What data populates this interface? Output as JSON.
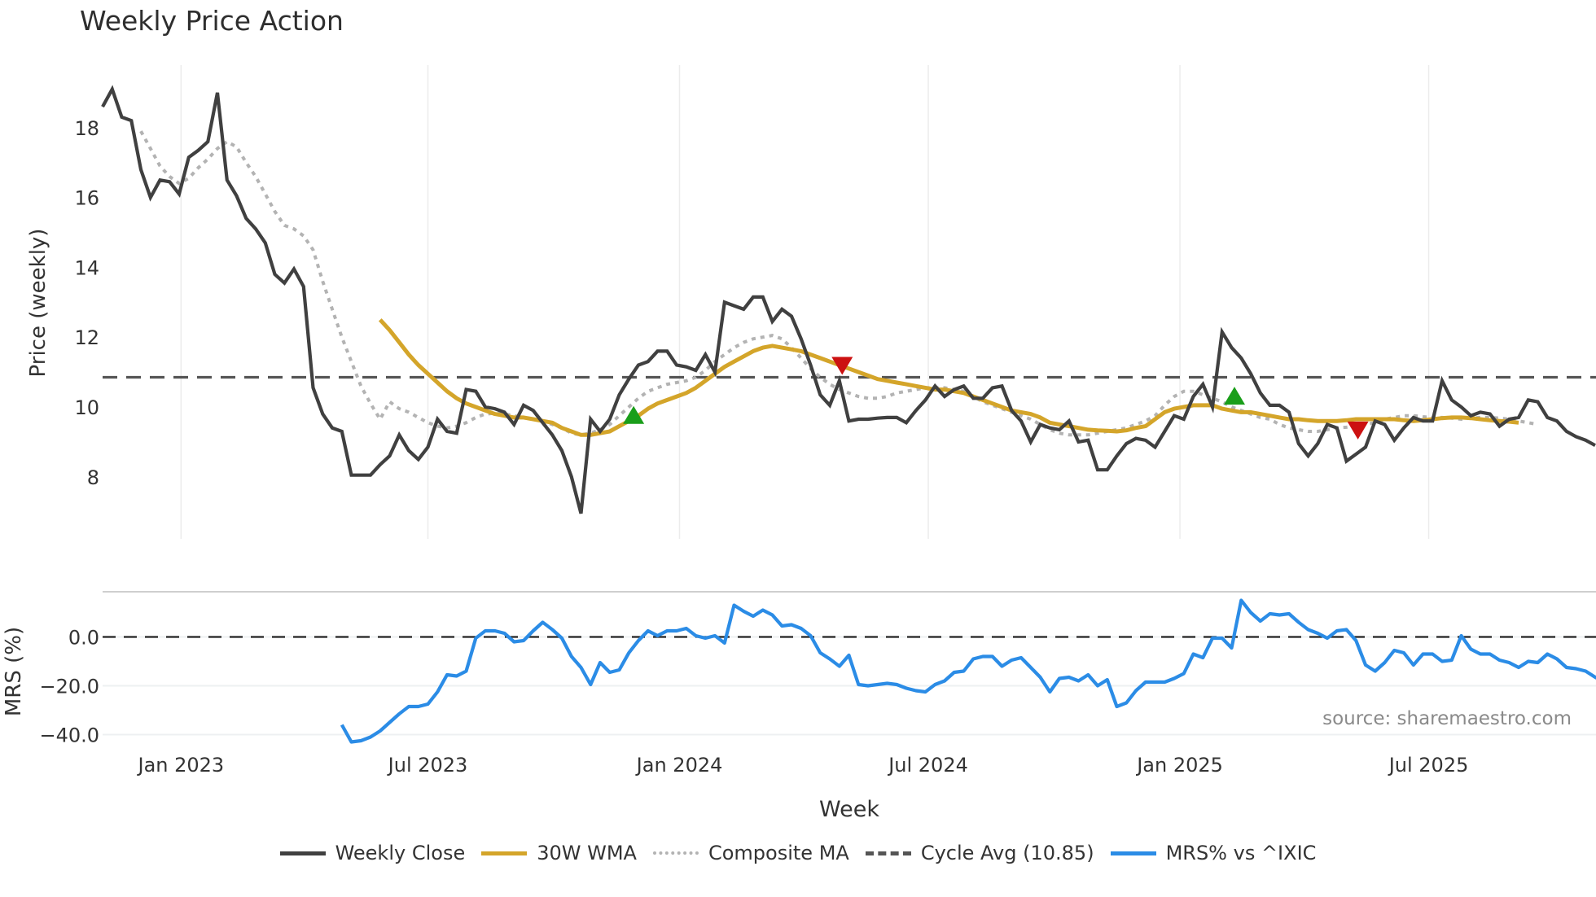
{
  "title": "Weekly Price Action",
  "source_note": "source: sharemaestro.com",
  "colors": {
    "close": "#404040",
    "wma": "#d4a52a",
    "composite": "#b3b3b3",
    "cycle_avg": "#555555",
    "mrs": "#2b8ce6",
    "buy_marker": "#1a9e1a",
    "sell_marker": "#cc1111",
    "grid": "#e8e8e8"
  },
  "legend": [
    {
      "label": "Weekly Close",
      "style": "solid",
      "color": "#404040"
    },
    {
      "label": "30W WMA",
      "style": "solid",
      "color": "#d4a52a"
    },
    {
      "label": "Composite MA",
      "style": "dotted",
      "color": "#b3b3b3"
    },
    {
      "label": "Cycle Avg (10.85)",
      "style": "dashed",
      "color": "#555555"
    },
    {
      "label": "MRS% vs ^IXIC",
      "style": "solid",
      "color": "#2b8ce6"
    }
  ],
  "chart_data": [
    {
      "type": "line",
      "title": "Weekly Price Action",
      "xlabel": "Week",
      "ylabel": "Price (weekly)",
      "yticks": [
        8,
        10,
        12,
        14,
        16,
        18
      ],
      "ylim": [
        6.3,
        19.6
      ],
      "xticks": [
        "Jan 2023",
        "Jul 2023",
        "Jan 2024",
        "Jul 2024",
        "Jan 2025",
        "Jul 2025"
      ],
      "xtick_index": [
        8.2,
        34,
        60.3,
        86.3,
        112.6,
        138.6
      ],
      "grid": "vertical",
      "cycle_avg": 10.85,
      "series": [
        {
          "name": "Weekly Close",
          "start_index": 0,
          "values": [
            18.6,
            19.1,
            18.3,
            18.2,
            16.8,
            16.0,
            16.5,
            16.45,
            16.1,
            17.15,
            17.35,
            17.6,
            19.0,
            16.5,
            16.05,
            15.4,
            15.1,
            14.7,
            13.8,
            13.55,
            13.95,
            13.45,
            10.55,
            9.8,
            9.4,
            9.3,
            8.05,
            8.05,
            8.05,
            8.35,
            8.6,
            9.2,
            8.75,
            8.5,
            8.85,
            9.65,
            9.3,
            9.25,
            10.5,
            10.45,
            10.0,
            9.95,
            9.85,
            9.5,
            10.05,
            9.9,
            9.55,
            9.2,
            8.75,
            8.0,
            6.95,
            9.65,
            9.3,
            9.65,
            10.35,
            10.8,
            11.2,
            11.3,
            11.6,
            11.6,
            11.2,
            11.15,
            11.05,
            11.5,
            11.0,
            13.0,
            12.9,
            12.8,
            13.15,
            13.15,
            12.45,
            12.8,
            12.6,
            11.95,
            11.2,
            10.35,
            10.05,
            10.75,
            9.6,
            9.65,
            9.65,
            9.68,
            9.7,
            9.7,
            9.55,
            9.9,
            10.2,
            10.6,
            10.3,
            10.5,
            10.6,
            10.25,
            10.25,
            10.55,
            10.6,
            9.9,
            9.6,
            9.0,
            9.5,
            9.4,
            9.35,
            9.6,
            9.0,
            9.05,
            8.2,
            8.2,
            8.6,
            8.95,
            9.1,
            9.05,
            8.85,
            9.3,
            9.75,
            9.65,
            10.3,
            10.65,
            10.0,
            12.15,
            11.7,
            11.4,
            10.95,
            10.4,
            10.05,
            10.05,
            9.85,
            8.95,
            8.6,
            8.95,
            9.5,
            9.4,
            8.45,
            8.65,
            8.85,
            9.6,
            9.5,
            9.05,
            9.4,
            9.7,
            9.6,
            9.6,
            10.75,
            10.2,
            10.0,
            9.75,
            9.85,
            9.8,
            9.45,
            9.65,
            9.7,
            10.2,
            10.15,
            9.7,
            9.6,
            9.3,
            9.15,
            9.05,
            8.9
          ]
        },
        {
          "name": "30W WMA",
          "start_index": 29,
          "values": [
            12.5,
            12.2,
            11.85,
            11.5,
            11.2,
            10.95,
            10.7,
            10.45,
            10.25,
            10.1,
            10.0,
            9.9,
            9.8,
            9.75,
            9.7,
            9.7,
            9.65,
            9.6,
            9.55,
            9.4,
            9.3,
            9.2,
            9.2,
            9.25,
            9.3,
            9.45,
            9.6,
            9.75,
            9.95,
            10.1,
            10.2,
            10.3,
            10.4,
            10.55,
            10.75,
            10.95,
            11.15,
            11.3,
            11.45,
            11.6,
            11.7,
            11.75,
            11.7,
            11.65,
            11.6,
            11.5,
            11.4,
            11.3,
            11.2,
            11.1,
            11.0,
            10.9,
            10.8,
            10.75,
            10.7,
            10.65,
            10.6,
            10.55,
            10.5,
            10.5,
            10.45,
            10.4,
            10.3,
            10.2,
            10.1,
            10.0,
            9.9,
            9.85,
            9.8,
            9.7,
            9.55,
            9.5,
            9.45,
            9.4,
            9.35,
            9.33,
            9.32,
            9.3,
            9.33,
            9.4,
            9.45,
            9.65,
            9.85,
            9.95,
            10.0,
            10.05,
            10.05,
            10.05,
            9.95,
            9.9,
            9.85,
            9.85,
            9.8,
            9.75,
            9.7,
            9.65,
            9.65,
            9.62,
            9.6,
            9.6,
            9.6,
            9.62,
            9.65,
            9.65,
            9.65,
            9.65,
            9.65,
            9.62,
            9.6,
            9.62,
            9.65,
            9.68,
            9.7,
            9.7,
            9.68,
            9.65,
            9.62,
            9.6,
            9.58,
            9.55
          ]
        },
        {
          "name": "Composite MA",
          "start_index": 4,
          "values": [
            17.9,
            17.4,
            16.9,
            16.6,
            16.4,
            16.55,
            16.85,
            17.1,
            17.4,
            17.6,
            17.45,
            17.0,
            16.6,
            16.1,
            15.6,
            15.2,
            15.1,
            14.9,
            14.5,
            13.6,
            12.8,
            12.0,
            11.3,
            10.6,
            10.1,
            9.65,
            10.15,
            9.95,
            9.85,
            9.7,
            9.55,
            9.45,
            9.4,
            9.45,
            9.55,
            9.7,
            9.8,
            9.82,
            9.8,
            9.75,
            9.7,
            9.65,
            9.6,
            9.5,
            9.4,
            9.25,
            9.2,
            9.25,
            9.35,
            9.5,
            9.75,
            10.0,
            10.25,
            10.45,
            10.55,
            10.65,
            10.7,
            10.75,
            10.85,
            11.05,
            11.3,
            11.5,
            11.7,
            11.85,
            11.95,
            12.0,
            12.05,
            11.95,
            11.7,
            11.4,
            11.1,
            10.85,
            10.65,
            10.5,
            10.4,
            10.3,
            10.25,
            10.25,
            10.3,
            10.4,
            10.45,
            10.5,
            10.55,
            10.55,
            10.55,
            10.5,
            10.45,
            10.3,
            10.15,
            10.05,
            9.95,
            9.85,
            9.75,
            9.65,
            9.5,
            9.35,
            9.25,
            9.2,
            9.2,
            9.2,
            9.25,
            9.3,
            9.35,
            9.4,
            9.5,
            9.6,
            9.75,
            10.05,
            10.3,
            10.45,
            10.45,
            10.35,
            10.25,
            10.15,
            10.0,
            9.9,
            9.8,
            9.7,
            9.65,
            9.5,
            9.4,
            9.35,
            9.3,
            9.3,
            9.35,
            9.4,
            9.42,
            9.45,
            9.5,
            9.55,
            9.65,
            9.7,
            9.75,
            9.75,
            9.72,
            9.7,
            9.7,
            9.68,
            9.65,
            9.68,
            9.7,
            9.7,
            9.68,
            9.65,
            9.6,
            9.55,
            9.5
          ]
        },
        {
          "name": "Cycle Avg (10.85)",
          "constant": 10.85
        }
      ],
      "markers": [
        {
          "type": "buy",
          "shape": "triangle-up",
          "index": 55.5,
          "price": 9.75
        },
        {
          "type": "sell",
          "shape": "triangle-down",
          "index": 77.3,
          "price": 11.2
        },
        {
          "type": "buy",
          "shape": "triangle-up",
          "index": 118.3,
          "price": 10.3
        },
        {
          "type": "sell",
          "shape": "triangle-down",
          "index": 131.2,
          "price": 9.35
        }
      ]
    },
    {
      "type": "line",
      "title": "",
      "xlabel": "Week",
      "ylabel": "MRS (%)",
      "yticks": [
        0.0,
        -20.0,
        -40.0
      ],
      "ytick_labels": [
        "0.0",
        "−20.0",
        "−40.0"
      ],
      "ylim": [
        -48,
        20
      ],
      "zero_line": 0.0,
      "series": [
        {
          "name": "MRS% vs ^IXIC",
          "start_index": 25,
          "values": [
            -36,
            -43,
            -42.5,
            -41,
            -38.5,
            -35,
            -31.5,
            -28.5,
            -28.5,
            -27.5,
            -22.5,
            -15.5,
            -16,
            -14,
            -0.5,
            2.5,
            2.5,
            1.5,
            -2,
            -1.5,
            2.5,
            6,
            3,
            -0.5,
            -8,
            -12.5,
            -19.5,
            -10.5,
            -14.5,
            -13.5,
            -6.5,
            -1.5,
            2.5,
            0.5,
            2.5,
            2.5,
            3.5,
            0.5,
            -0.5,
            0.5,
            -2.5,
            13,
            10.5,
            8.5,
            11,
            9,
            4.5,
            5,
            3.5,
            0.5,
            -6.5,
            -9,
            -12,
            -7.5,
            -19.5,
            -20,
            -19.5,
            -19,
            -19.5,
            -21,
            -22,
            -22.5,
            -19.5,
            -18,
            -14.5,
            -14,
            -9,
            -8,
            -8,
            -12,
            -9.5,
            -8.5,
            -12.5,
            -16.5,
            -22.5,
            -17,
            -16.5,
            -18,
            -15.5,
            -20,
            -17.5,
            -28.5,
            -27,
            -22,
            -18.5,
            -18.5,
            -18.5,
            -17,
            -15,
            -7,
            -8.5,
            -0.5,
            -0.5,
            -4.5,
            15,
            10,
            6.5,
            9.5,
            9,
            9.5,
            6,
            3,
            1.5,
            -0.5,
            2.5,
            3,
            -1.5,
            -11.5,
            -14,
            -10.5,
            -5.5,
            -6.5,
            -11.5,
            -7,
            -7,
            -10,
            -9.5,
            0.5,
            -5,
            -7,
            -7,
            -9.5,
            -10.5,
            -12.5,
            -10,
            -10.5,
            -7,
            -9,
            -12.5,
            -13,
            -14,
            -16.5,
            -18.5,
            -20
          ]
        }
      ]
    }
  ],
  "axes": {
    "price_ylabel": "Price (weekly)",
    "mrs_ylabel": "MRS (%)",
    "xlabel": "Week"
  }
}
